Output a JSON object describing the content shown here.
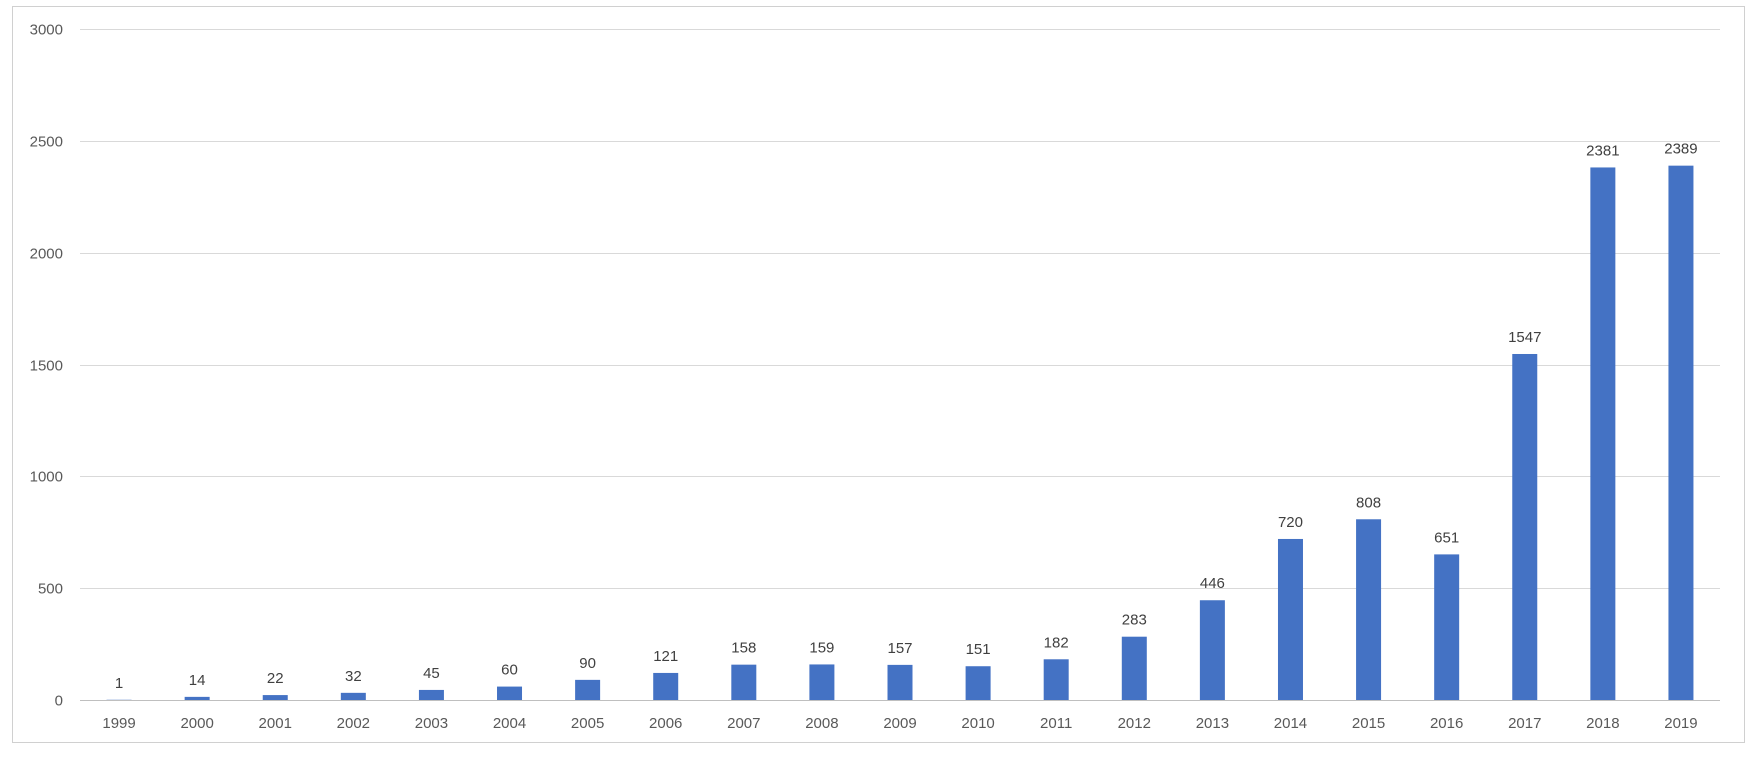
{
  "chart_data": {
    "type": "bar",
    "title": "",
    "xlabel": "",
    "ylabel": "",
    "categories": [
      "1999",
      "2000",
      "2001",
      "2002",
      "2003",
      "2004",
      "2005",
      "2006",
      "2007",
      "2008",
      "2009",
      "2010",
      "2011",
      "2012",
      "2013",
      "2014",
      "2015",
      "2016",
      "2017",
      "2018",
      "2019"
    ],
    "values": [
      1,
      14,
      22,
      32,
      45,
      60,
      90,
      121,
      158,
      159,
      157,
      151,
      182,
      283,
      446,
      720,
      808,
      651,
      1547,
      2381,
      2389
    ],
    "ylim": [
      0,
      3000
    ],
    "yticks": [
      0,
      500,
      1000,
      1500,
      2000,
      2500,
      3000
    ],
    "grid": true,
    "legend": "none",
    "data_labels": true,
    "colors": {
      "bar": "#4472c4",
      "grid": "#d9d9d9",
      "axis": "#bfbfbf",
      "text": "#595959"
    }
  }
}
